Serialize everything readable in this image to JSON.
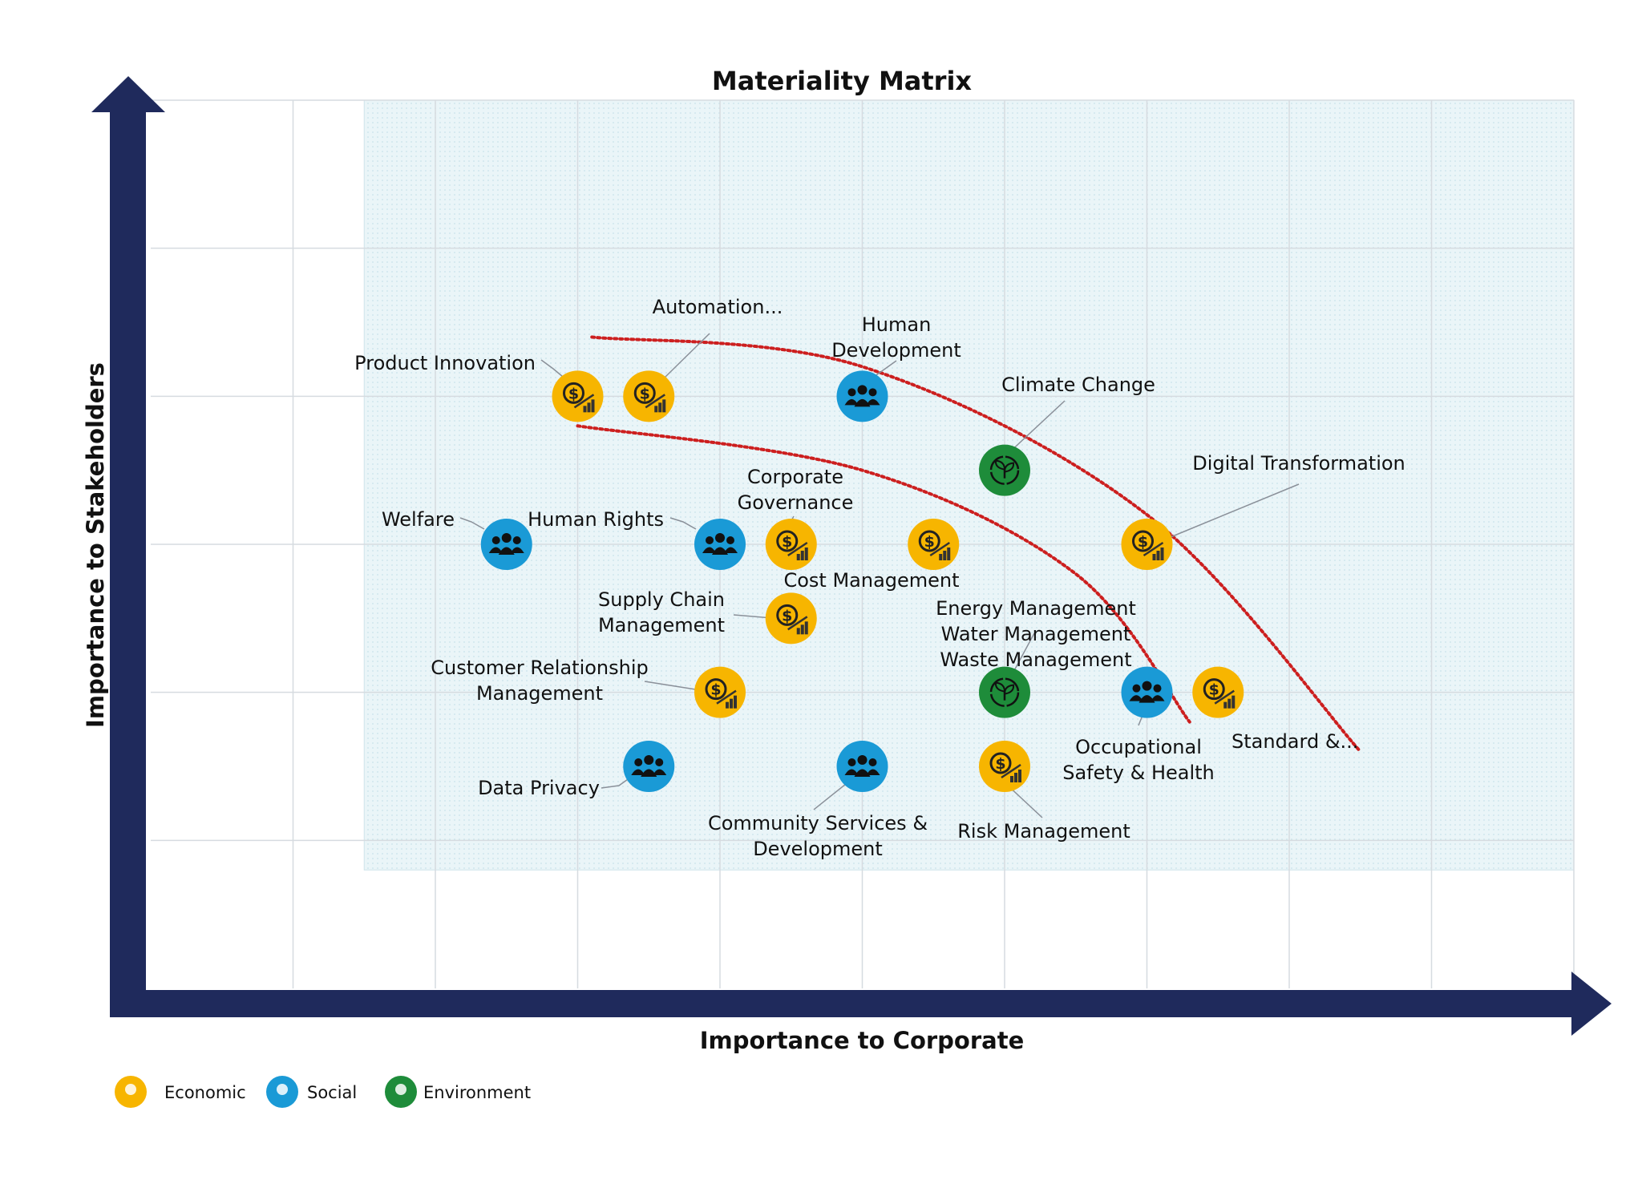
{
  "chart_data": {
    "type": "scatter",
    "title": "Materiality Matrix",
    "xlabel": "Importance to Corporate",
    "ylabel": "Importance to Stakeholders",
    "xlim": [
      0,
      10
    ],
    "ylim": [
      0,
      6
    ],
    "grid": true,
    "legend_position": "bottom-left",
    "categories": [
      {
        "key": "economic",
        "label": "Economic",
        "color": "#f7b500"
      },
      {
        "key": "social",
        "label": "Social",
        "color": "#1a9ad6"
      },
      {
        "key": "environment",
        "label": "Environment",
        "color": "#1e8c3a"
      }
    ],
    "colors": {
      "axis": "#1f2a5c",
      "grid": "#d6dbe0",
      "zone_fill": "#eaf5f8",
      "threshold_curve": "#cc1f1f",
      "icon_glyph": "#333333"
    },
    "threshold_curves": [
      {
        "name": "upper",
        "points": [
          [
            3.1,
            4.4
          ],
          [
            5.0,
            4.2
          ],
          [
            7.0,
            3.2
          ],
          [
            8.5,
            1.6
          ]
        ]
      },
      {
        "name": "lower",
        "points": [
          [
            3.0,
            3.8
          ],
          [
            5.0,
            3.5
          ],
          [
            6.5,
            2.8
          ],
          [
            7.3,
            1.8
          ]
        ]
      }
    ],
    "points": [
      {
        "label": [
          "Product Innovation"
        ],
        "category": "economic",
        "x": 3.0,
        "y": 4.0
      },
      {
        "label": [
          "Automation..."
        ],
        "category": "economic",
        "x": 3.5,
        "y": 4.0
      },
      {
        "label": [
          "Human",
          "Development"
        ],
        "category": "social",
        "x": 5.0,
        "y": 4.0
      },
      {
        "label": [
          "Climate Change"
        ],
        "category": "environment",
        "x": 6.0,
        "y": 3.5
      },
      {
        "label": [
          "Digital Transformation"
        ],
        "category": "economic",
        "x": 7.0,
        "y": 3.0
      },
      {
        "label": [
          "Welfare"
        ],
        "category": "social",
        "x": 2.5,
        "y": 3.0
      },
      {
        "label": [
          "Human Rights"
        ],
        "category": "social",
        "x": 4.0,
        "y": 3.0
      },
      {
        "label": [
          "Corporate",
          "Governance"
        ],
        "category": "economic",
        "x": 4.5,
        "y": 3.0
      },
      {
        "label": [
          "Cost  Management"
        ],
        "category": "economic",
        "x": 5.5,
        "y": 3.0
      },
      {
        "label": [
          "Supply Chain",
          "Management"
        ],
        "category": "economic",
        "x": 4.5,
        "y": 2.5
      },
      {
        "label": [
          "Customer Relationship",
          "Management"
        ],
        "category": "economic",
        "x": 4.0,
        "y": 2.0
      },
      {
        "label": [
          "Energy Management",
          "Water Management",
          "Waste Management"
        ],
        "category": "environment",
        "x": 6.0,
        "y": 2.0
      },
      {
        "label": [
          "Occupational",
          "Safety & Health"
        ],
        "category": "social",
        "x": 7.0,
        "y": 2.0
      },
      {
        "label": [
          "Standard &..."
        ],
        "category": "economic",
        "x": 7.5,
        "y": 2.0
      },
      {
        "label": [
          "Data Privacy"
        ],
        "category": "social",
        "x": 3.5,
        "y": 1.5
      },
      {
        "label": [
          "Community Services &",
          "Development"
        ],
        "category": "social",
        "x": 5.0,
        "y": 1.5
      },
      {
        "label": [
          "Risk Management"
        ],
        "category": "economic",
        "x": 6.0,
        "y": 1.5
      }
    ]
  }
}
